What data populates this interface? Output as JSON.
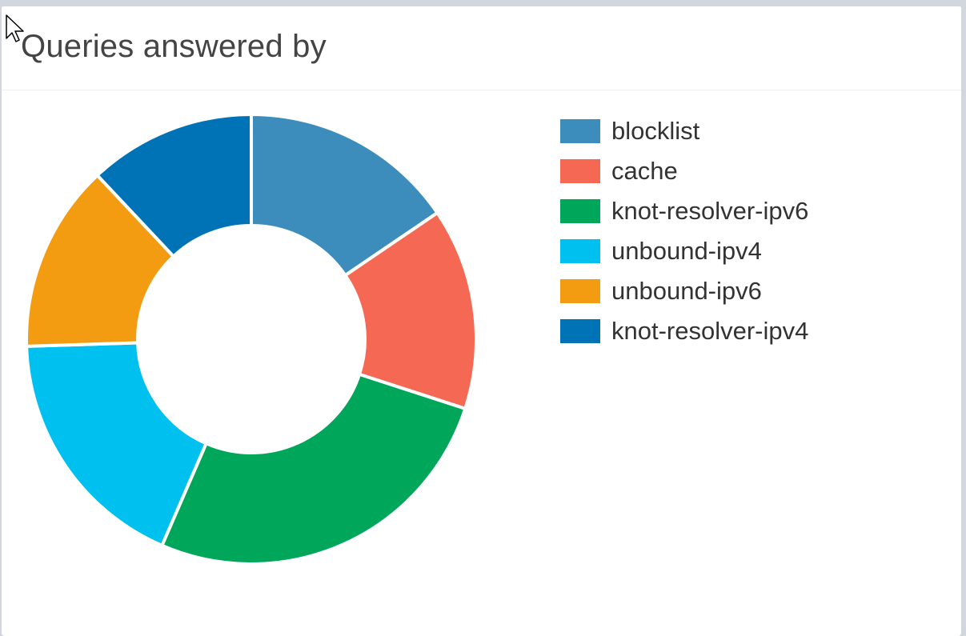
{
  "panel": {
    "title": "Queries answered by"
  },
  "chart_data": {
    "type": "pie",
    "donut": true,
    "title": "Queries answered by",
    "legend_position": "right",
    "categories": [
      "blocklist",
      "cache",
      "knot-resolver-ipv6",
      "unbound-ipv4",
      "unbound-ipv6",
      "knot-resolver-ipv4"
    ],
    "values": [
      15.5,
      14.5,
      26.5,
      18,
      13.5,
      12
    ],
    "colors": [
      "#3c8dbc",
      "#f56954",
      "#00a65a",
      "#00c0ef",
      "#f39c12",
      "#0073b7"
    ]
  }
}
